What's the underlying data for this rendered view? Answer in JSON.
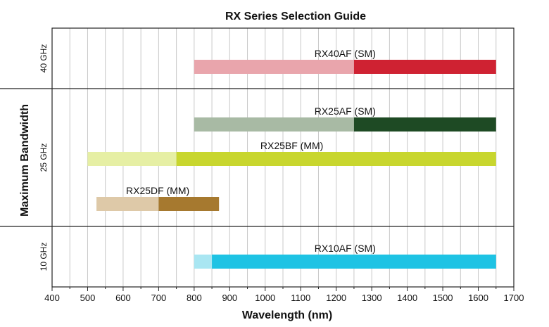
{
  "chart_data": {
    "type": "range-bar",
    "title": "RX Series Selection Guide",
    "xlabel": "Wavelength (nm)",
    "ylabel": "Maximum Bandwidth",
    "xlim": [
      400,
      1700
    ],
    "x_ticks": [
      400,
      500,
      600,
      700,
      800,
      900,
      1000,
      1100,
      1200,
      1300,
      1400,
      1500,
      1600,
      1700
    ],
    "grid": true,
    "panels": [
      {
        "label": "40 GHz",
        "bars": [
          {
            "name": "RX40AF (SM)",
            "light": [
              800,
              1250
            ],
            "dark": [
              1250,
              1650
            ],
            "light_color": "#e9a5ac",
            "dark_color": "#cf2232"
          }
        ]
      },
      {
        "label": "25 GHz",
        "bars": [
          {
            "name": "RX25AF (SM)",
            "light": [
              800,
              1250
            ],
            "dark": [
              1250,
              1650
            ],
            "light_color": "#a8baa4",
            "dark_color": "#1e4a24"
          },
          {
            "name": "RX25BF (MM)",
            "light": [
              500,
              750
            ],
            "dark": [
              750,
              1650
            ],
            "light_color": "#e6efa4",
            "dark_color": "#c8d62e"
          },
          {
            "name": "RX25DF (MM)",
            "light": [
              525,
              700
            ],
            "dark": [
              700,
              870
            ],
            "light_color": "#dec9a8",
            "dark_color": "#a6792f"
          }
        ]
      },
      {
        "label": "10 GHz",
        "bars": [
          {
            "name": "RX10AF (SM)",
            "light": [
              800,
              850
            ],
            "dark": [
              850,
              1650
            ],
            "light_color": "#a9e6f2",
            "dark_color": "#1ec3e4"
          }
        ]
      }
    ]
  }
}
